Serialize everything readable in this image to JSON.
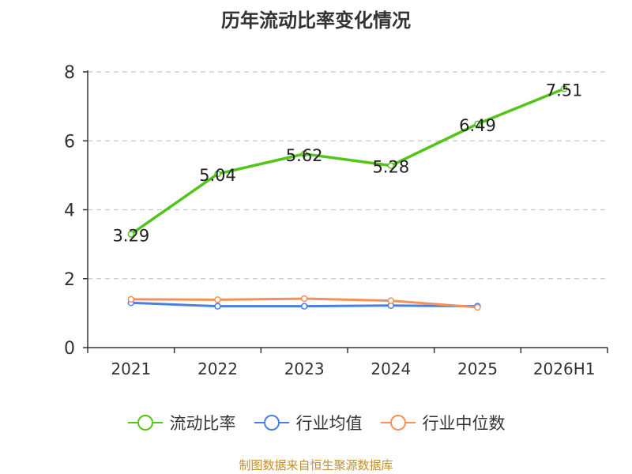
{
  "chart_data": {
    "type": "line",
    "title": "历年流动比率变化情况",
    "categories": [
      "2021",
      "2022",
      "2023",
      "2024",
      "2025",
      "2026H1"
    ],
    "ylim": [
      0,
      8
    ],
    "yticks": [
      0,
      2,
      4,
      6,
      8
    ],
    "grid": true,
    "legend_position": "bottom",
    "series": [
      {
        "name": "流动比率",
        "color": "#52c41a",
        "values": [
          3.29,
          5.04,
          5.62,
          5.28,
          6.49,
          7.51
        ],
        "labels": [
          "3.29",
          "5.04",
          "5.62",
          "5.28",
          "6.49",
          "7.51"
        ]
      },
      {
        "name": "行业均值",
        "color": "#4a7fe0",
        "values": [
          1.3,
          1.2,
          1.2,
          1.22,
          1.2,
          null
        ]
      },
      {
        "name": "行业中位数",
        "color": "#f2915a",
        "values": [
          1.4,
          1.39,
          1.42,
          1.36,
          1.17,
          null
        ]
      }
    ]
  },
  "source_note": "制图数据来自恒生聚源数据库"
}
